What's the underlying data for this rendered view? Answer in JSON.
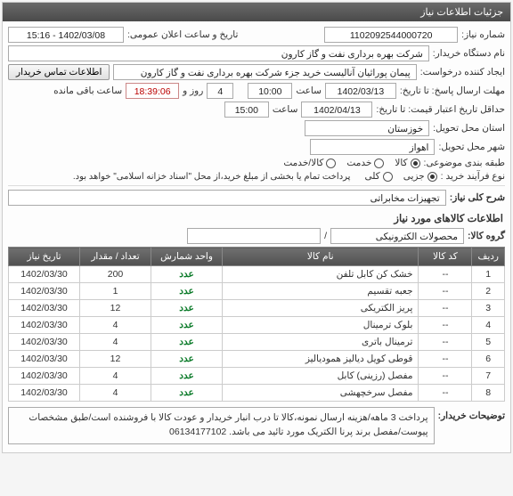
{
  "panel": {
    "title": "جزئیات اطلاعات نیاز"
  },
  "form": {
    "need_no_label": "شماره نیاز:",
    "need_no": "1102092544000720",
    "announce_label": "تاریخ و ساعت اعلان عمومی:",
    "announce_value": "1402/03/08 - 15:16",
    "buyer_label": "نام دستگاه خریدار:",
    "buyer_value": "شرکت بهره برداری نفت و گاز کارون",
    "creator_label": "ایجاد کننده درخواست:",
    "creator_value": "پیمان پوراثیان آنالیست خرید جزء شرکت بهره برداری نفت و گاز کارون",
    "contact_btn": "اطلاعات تماس خریدار",
    "deadline_label": "مهلت ارسال پاسخ:   تا تاریخ:",
    "deadline_date": "1402/03/13",
    "time_label": "ساعت",
    "deadline_time": "10:00",
    "day_label": "روز و",
    "day_value": "4",
    "remain_label": "ساعت باقی مانده",
    "remain_value": "18:39:06",
    "valid_label": "حداقل تاریخ اعتبار قیمت:    تا تاریخ:",
    "valid_date": "1402/04/13",
    "valid_time": "15:00",
    "province_label": "استان محل تحویل:",
    "province_value": "خوزستان",
    "city_label": "شهر محل تحویل:",
    "city_value": "اهواز",
    "class_label": "طبقه بندی موضوعی:",
    "class_kala": "کالا",
    "class_khadamat": "خدمت",
    "class_both": "کالا/خدمت",
    "buytype_label": "نوع فرآیند خرید :",
    "buytype_partial": "جزیی",
    "buytype_full": "کلی",
    "buytype_note": "پرداخت تمام یا بخشی از مبلغ خرید،از محل \"اسناد خزانه اسلامی\" خواهد بود."
  },
  "desc": {
    "label": "شرح کلی نیاز:",
    "value": "تجهیزات مخابراتی"
  },
  "goods": {
    "section_title": "اطلاعات کالاهای مورد نیاز",
    "group_label": "گروه کالا:",
    "group_value": "محصولات الکترونیکی",
    "slash": "/",
    "columns": {
      "row": "ردیف",
      "code": "کد کالا",
      "name": "نام کالا",
      "unit": "واحد شمارش",
      "qty": "تعداد / مقدار",
      "date": "تاریخ نیاز"
    },
    "rows": [
      {
        "n": "1",
        "code": "--",
        "name": "خشک کن کابل تلفن",
        "unit": "عدد",
        "qty": "200",
        "date": "1402/03/30"
      },
      {
        "n": "2",
        "code": "--",
        "name": "جعبه تقسیم",
        "unit": "عدد",
        "qty": "1",
        "date": "1402/03/30"
      },
      {
        "n": "3",
        "code": "--",
        "name": "پریز الکتریکی",
        "unit": "عدد",
        "qty": "12",
        "date": "1402/03/30"
      },
      {
        "n": "4",
        "code": "--",
        "name": "بلوک ترمینال",
        "unit": "عدد",
        "qty": "4",
        "date": "1402/03/30"
      },
      {
        "n": "5",
        "code": "--",
        "name": "ترمینال باتری",
        "unit": "عدد",
        "qty": "4",
        "date": "1402/03/30"
      },
      {
        "n": "6",
        "code": "--",
        "name": "قوطی کویل دیالیز همودیالیز",
        "unit": "عدد",
        "qty": "12",
        "date": "1402/03/30"
      },
      {
        "n": "7",
        "code": "--",
        "name": "مفصل (رزینی) کابل",
        "unit": "عدد",
        "qty": "4",
        "date": "1402/03/30"
      },
      {
        "n": "8",
        "code": "--",
        "name": "مفصل سرخچهشی",
        "unit": "عدد",
        "qty": "4",
        "date": "1402/03/30"
      }
    ]
  },
  "notes": {
    "label": "توضیحات خریدار:",
    "text": "پرداخت 3 ماهه/هزینه ارسال نمونه،کالا تا درب انبار خریدار و عودت کالا با فروشنده است/طبق مشخصات پیوست/مفصل برند پرنا الکتریک مورد تائید می باشد. 06134177102"
  },
  "colors": {
    "header_bg": "#5a5a5a",
    "border": "#aaaaaa",
    "green": "#0a7a28",
    "red": "#bb0000"
  }
}
